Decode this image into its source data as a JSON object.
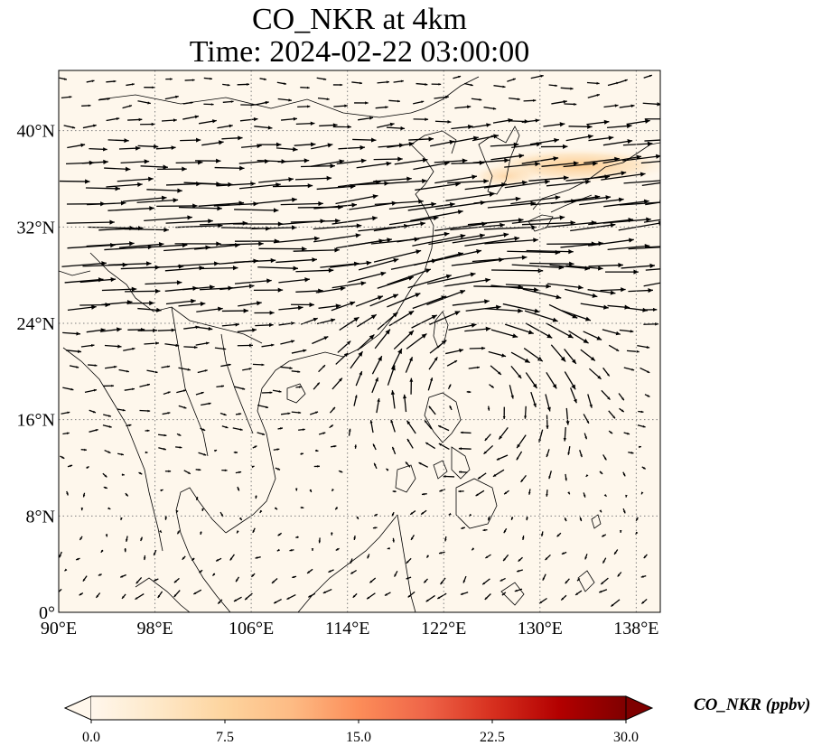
{
  "title": {
    "line1": "CO_NKR at 4km",
    "line2": "Time: 2024-02-22 03:00:00"
  },
  "map": {
    "variable": "CO_NKR",
    "level": "4km",
    "time": "2024-02-22 03:00:00",
    "lon_range": [
      90,
      140
    ],
    "lat_range": [
      0,
      45
    ],
    "lon_ticks": [
      {
        "value": 90,
        "label": "90°E"
      },
      {
        "value": 98,
        "label": "98°E"
      },
      {
        "value": 106,
        "label": "106°E"
      },
      {
        "value": 114,
        "label": "114°E"
      },
      {
        "value": 122,
        "label": "122°E"
      },
      {
        "value": 130,
        "label": "130°E"
      },
      {
        "value": 138,
        "label": "138°E"
      }
    ],
    "lat_ticks": [
      {
        "value": 0,
        "label": "0°"
      },
      {
        "value": 8,
        "label": "8°N"
      },
      {
        "value": 16,
        "label": "16°N"
      },
      {
        "value": 24,
        "label": "24°N"
      },
      {
        "value": 32,
        "label": "32°N"
      },
      {
        "value": 40,
        "label": "40°N"
      }
    ],
    "gridlines": "dotted",
    "plume": {
      "lon_range": [
        123,
        140
      ],
      "lat_range": [
        35,
        38.5
      ],
      "max_ppbv": 6
    },
    "wind_pattern": [
      "westerly jet 24°N–40°N",
      "anticyclonic circulation near 124°E 20°N",
      "weak flow south of 16°N"
    ]
  },
  "colorbar": {
    "label": "CO_NKR (ppbv)",
    "min": 0.0,
    "max": 30.0,
    "colormap": "OrRd",
    "extend": "both",
    "ticks": [
      "0.0",
      "7.5",
      "15.0",
      "22.5",
      "30.0"
    ]
  },
  "colors": {
    "background": "#fef7ec",
    "plume": "#fdd49e",
    "coast": "#000000",
    "grid": "#808080"
  }
}
